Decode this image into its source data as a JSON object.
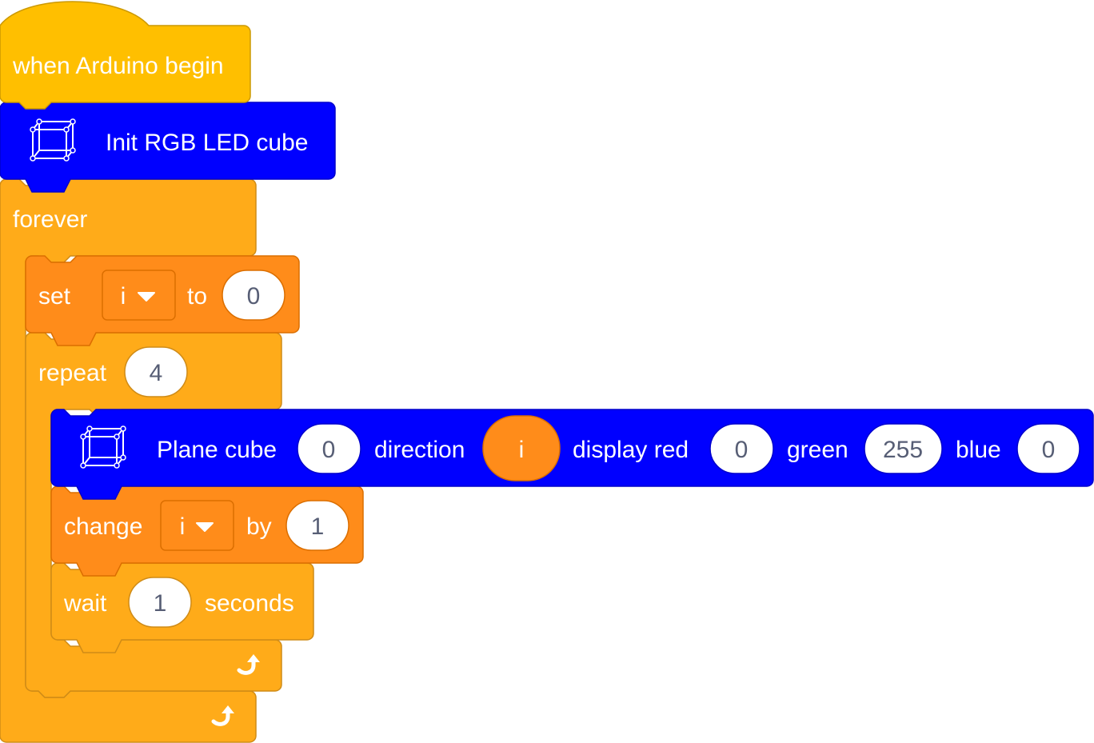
{
  "colors": {
    "event": "#ffbf00",
    "event_border": "#cc9900",
    "control": "#ffab19",
    "control_border": "#cf8b17",
    "variables": "#ff8c1a",
    "variables_border": "#db6e00",
    "extension": "#0000ff",
    "extension_border": "#0000cc",
    "input_text": "#575e75"
  },
  "hat": {
    "label": "when Arduino begin"
  },
  "init_cube": {
    "icon": "led-cube-icon",
    "label": "Init RGB LED cube"
  },
  "forever": {
    "label": "forever",
    "loop_icon": "loop-arrow-icon"
  },
  "set_var": {
    "label_set": "set",
    "variable": "i",
    "label_to": "to",
    "value": "0"
  },
  "repeat": {
    "label": "repeat",
    "count": "4",
    "loop_icon": "loop-arrow-icon"
  },
  "plane_cube": {
    "icon": "led-cube-icon",
    "label_plane": "Plane cube",
    "plane_value": "0",
    "label_direction": "direction",
    "direction_var": "i",
    "label_red": "display red",
    "red_value": "0",
    "label_green": "green",
    "green_value": "255",
    "label_blue": "blue",
    "blue_value": "0"
  },
  "change_var": {
    "label_change": "change",
    "variable": "i",
    "label_by": "by",
    "value": "1"
  },
  "wait": {
    "label_wait": "wait",
    "value": "1",
    "label_seconds": "seconds"
  }
}
